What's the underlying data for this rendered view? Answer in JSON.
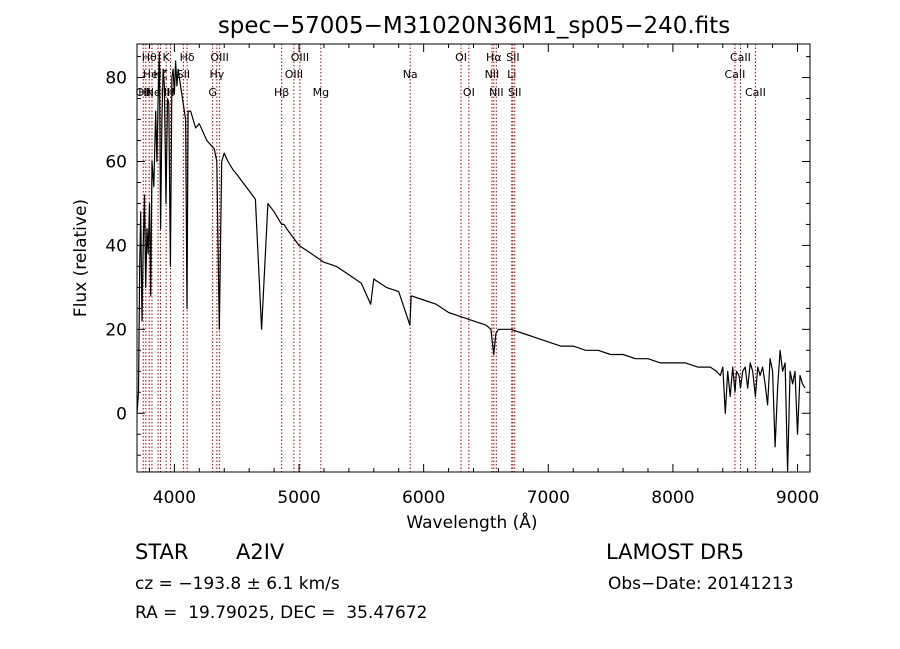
{
  "info": {
    "object_class": "STAR",
    "subclass": "A2IV",
    "survey": "LAMOST DR5",
    "cz": "cz = −193.8 ± 6.1 km/s",
    "obs_date": "Obs−Date: 20141213",
    "radec": "RA =  19.79025, DEC =  35.47672"
  },
  "chart_data": {
    "type": "line",
    "title": "spec−57005−M31020N36M1_sp05−240.fits",
    "xlabel": "Wavelength (Å)",
    "ylabel": "Flux (relative)",
    "xlim": [
      3700,
      9100
    ],
    "ylim": [
      -14,
      88
    ],
    "xticks": [
      4000,
      5000,
      6000,
      7000,
      8000,
      9000
    ],
    "yticks": [
      0,
      20,
      40,
      60,
      80
    ],
    "grid": false,
    "line_color": "#000000",
    "marker_color": "#aa0000",
    "series": [
      {
        "x": [
          3700,
          3712,
          3722,
          3730,
          3740,
          3750,
          3760,
          3770,
          3780,
          3790,
          3800,
          3810,
          3820,
          3835,
          3850,
          3860,
          3870,
          3880,
          3889,
          3900,
          3910,
          3920,
          3933,
          3945,
          3955,
          3968,
          3980,
          3990,
          4000,
          4010,
          4020,
          4030,
          4050,
          4070,
          4090,
          4101,
          4110,
          4130,
          4150,
          4170,
          4200,
          4230,
          4260,
          4290,
          4320,
          4340,
          4360,
          4380,
          4400,
          4430,
          4471,
          4500,
          4550,
          4600,
          4650,
          4700,
          4750,
          4800,
          4840,
          4861,
          4880,
          4900,
          4950,
          5000,
          5050,
          5100,
          5150,
          5200,
          5300,
          5400,
          5500,
          5575,
          5600,
          5700,
          5800,
          5890,
          5900,
          6000,
          6100,
          6200,
          6300,
          6400,
          6500,
          6540,
          6563,
          6580,
          6600,
          6700,
          6800,
          6900,
          7000,
          7100,
          7200,
          7300,
          7400,
          7500,
          7600,
          7700,
          7800,
          7900,
          8000,
          8100,
          8200,
          8300,
          8350,
          8380,
          8400,
          8420,
          8440,
          8460,
          8480,
          8498,
          8510,
          8530,
          8542,
          8560,
          8580,
          8600,
          8620,
          8640,
          8662,
          8680,
          8700,
          8720,
          8740,
          8760,
          8780,
          8800,
          8820,
          8840,
          8860,
          8880,
          8900,
          8920,
          8940,
          8960,
          8980,
          9000,
          9020,
          9040,
          9060
        ],
        "y": [
          0,
          5,
          35,
          48,
          22,
          40,
          52,
          30,
          44,
          38,
          50,
          28,
          60,
          54,
          72,
          60,
          76,
          86,
          44,
          70,
          82,
          78,
          50,
          75,
          74,
          35,
          80,
          82,
          76,
          84,
          78,
          82,
          78,
          74,
          70,
          25,
          72,
          72,
          70,
          68,
          69,
          67,
          65,
          64,
          63,
          60,
          20,
          60,
          62,
          60,
          58,
          57,
          55,
          53,
          51,
          20,
          50,
          48,
          46,
          45,
          45,
          44,
          42,
          40,
          39,
          38,
          37,
          36,
          35,
          33,
          31,
          26,
          32,
          30,
          29,
          21,
          28,
          27,
          26,
          24,
          23,
          22,
          21,
          20,
          14,
          19,
          20,
          20,
          19,
          18,
          17,
          16,
          16,
          15,
          15,
          14,
          14,
          13,
          13,
          12,
          12,
          12,
          11,
          11,
          10,
          9,
          11,
          0,
          10,
          4,
          11,
          5,
          10,
          9,
          6,
          10,
          11,
          6,
          12,
          10,
          4,
          11,
          9,
          11,
          7,
          2,
          13,
          10,
          -8,
          6,
          15,
          10,
          12,
          -14,
          10,
          7,
          10,
          -5,
          9,
          7,
          6
        ]
      }
    ],
    "lines": [
      {
        "w": 3750,
        "label": "OII",
        "row": 2
      },
      {
        "w": 3771,
        "label": "Hη",
        "row": 2
      },
      {
        "w": 3798,
        "label": "Hθ",
        "row": 0
      },
      {
        "w": 3820,
        "label": "HeI",
        "row": 1
      },
      {
        "w": 3869,
        "label": "NeIII",
        "row": 2
      },
      {
        "w": 3889,
        "label": "Hζ",
        "row": 1
      },
      {
        "w": 3934,
        "label": "K",
        "row": 0
      },
      {
        "w": 3969,
        "label": "H",
        "row": 2
      },
      {
        "w": 4072,
        "label": "SII",
        "row": 1
      },
      {
        "w": 4102,
        "label": "Hδ",
        "row": 0
      },
      {
        "w": 4307,
        "label": "G",
        "row": 2
      },
      {
        "w": 4341,
        "label": "Hγ",
        "row": 1
      },
      {
        "w": 4363,
        "label": "OIII",
        "row": 0
      },
      {
        "w": 4861,
        "label": "Hβ",
        "row": 2
      },
      {
        "w": 4959,
        "label": "OIII",
        "row": 1
      },
      {
        "w": 5007,
        "label": "OIII",
        "row": 0
      },
      {
        "w": 5175,
        "label": "Mg",
        "row": 2
      },
      {
        "w": 5892,
        "label": "Na",
        "row": 1
      },
      {
        "w": 6300,
        "label": "OI",
        "row": 0
      },
      {
        "w": 6363,
        "label": "OI",
        "row": 2
      },
      {
        "w": 6548,
        "label": "NII",
        "row": 1
      },
      {
        "w": 6563,
        "label": "Hα",
        "row": 0
      },
      {
        "w": 6583,
        "label": "NII",
        "row": 2
      },
      {
        "w": 6707,
        "label": "Li",
        "row": 1
      },
      {
        "w": 6716,
        "label": "SII",
        "row": 0
      },
      {
        "w": 6731,
        "label": "SII",
        "row": 2
      },
      {
        "w": 8498,
        "label": "CaII",
        "row": 1
      },
      {
        "w": 8542,
        "label": "CaII",
        "row": 0
      },
      {
        "w": 8662,
        "label": "CaII",
        "row": 2
      }
    ]
  }
}
